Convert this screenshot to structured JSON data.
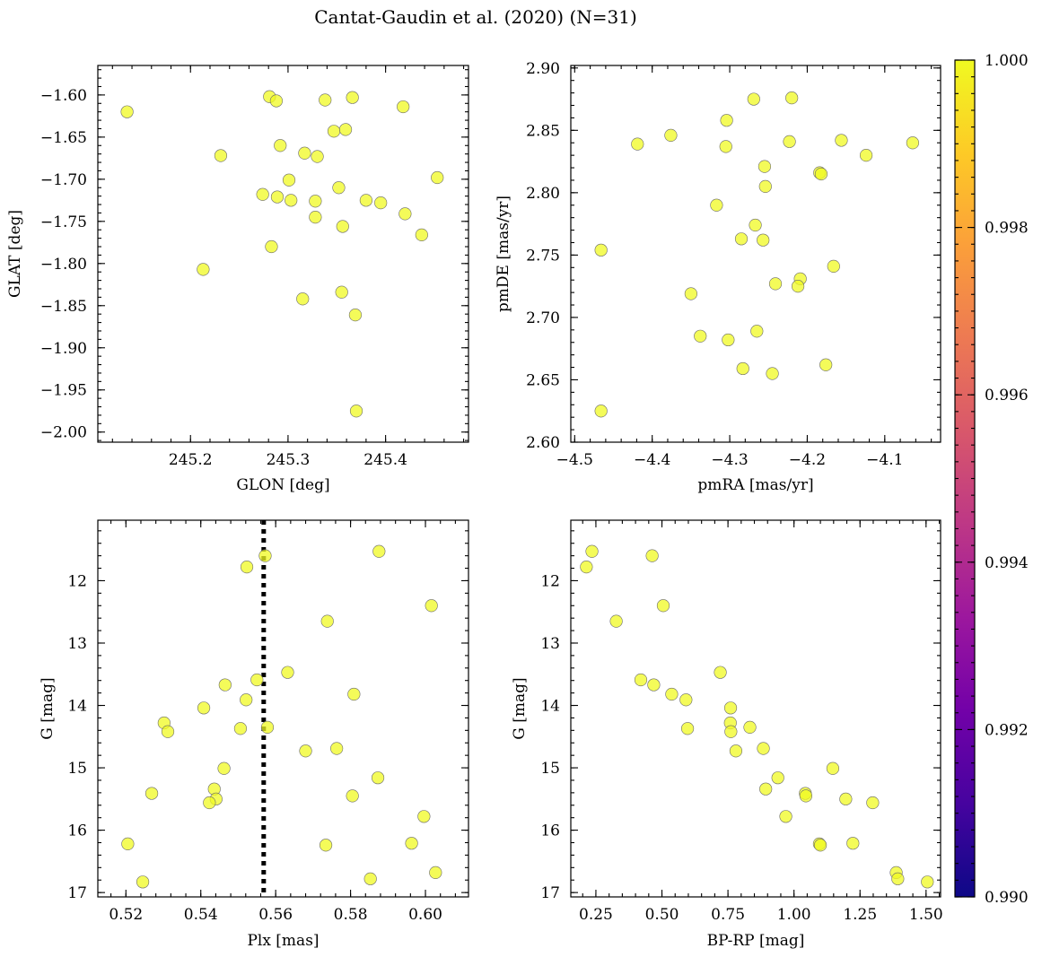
{
  "title": "Cantat-Gaudin et al. (2020) (N=31)",
  "colors": {
    "point": "#f0f921",
    "colormap": [
      "#0d0887",
      "#46039f",
      "#7201a8",
      "#9c179e",
      "#bd3786",
      "#d8576b",
      "#ed7953",
      "#fb9f3a",
      "#fdca26",
      "#f0f921"
    ]
  },
  "colorbar": {
    "range": [
      0.99,
      1.0
    ],
    "ticks": [
      0.99,
      0.992,
      0.994,
      0.996,
      0.998,
      1.0
    ],
    "tick_labels": [
      "0.990",
      "0.992",
      "0.994",
      "0.996",
      "0.998",
      "1.000"
    ]
  },
  "chart_data": [
    {
      "type": "scatter",
      "id": "glon-glat",
      "xlabel": "GLON [deg]",
      "ylabel": "GLAT [deg]",
      "xlim": [
        245.105,
        245.485
      ],
      "ylim": [
        -2.012,
        -1.565
      ],
      "xticks": [
        245.2,
        245.3,
        245.4
      ],
      "xtick_labels": [
        "245.2",
        "245.3",
        "245.4"
      ],
      "yticks": [
        -2.0,
        -1.95,
        -1.9,
        -1.85,
        -1.8,
        -1.75,
        -1.7,
        -1.65,
        -1.6
      ],
      "ytick_labels": [
        "−2.00",
        "−1.95",
        "−1.90",
        "−1.85",
        "−1.80",
        "−1.75",
        "−1.70",
        "−1.65",
        "−1.60"
      ],
      "x_minor_step": 0.02,
      "y_minor_step": 0.01,
      "x": [
        245.135,
        245.281,
        245.288,
        245.338,
        245.366,
        245.418,
        245.347,
        245.359,
        245.231,
        245.292,
        245.317,
        245.33,
        245.301,
        245.453,
        245.274,
        245.289,
        245.303,
        245.328,
        245.352,
        245.38,
        245.395,
        245.328,
        245.42,
        245.356,
        245.437,
        245.283,
        245.213,
        245.315,
        245.355,
        245.369,
        245.37
      ],
      "y": [
        -1.62,
        -1.602,
        -1.607,
        -1.606,
        -1.603,
        -1.614,
        -1.643,
        -1.641,
        -1.672,
        -1.66,
        -1.669,
        -1.673,
        -1.701,
        -1.698,
        -1.718,
        -1.721,
        -1.725,
        -1.726,
        -1.71,
        -1.725,
        -1.728,
        -1.745,
        -1.741,
        -1.756,
        -1.766,
        -1.78,
        -1.807,
        -1.842,
        -1.834,
        -1.861,
        -1.975
      ]
    },
    {
      "type": "scatter",
      "id": "pmra-pmde",
      "xlabel": "pmRA [mas/yr]",
      "ylabel": "pmDE [mas/yr]",
      "xlim": [
        -4.505,
        -4.028
      ],
      "ylim": [
        2.6,
        2.902
      ],
      "xticks": [
        -4.5,
        -4.4,
        -4.3,
        -4.2,
        -4.1
      ],
      "xtick_labels": [
        "−4.5",
        "−4.4",
        "−4.3",
        "−4.2",
        "−4.1"
      ],
      "yticks": [
        2.6,
        2.65,
        2.7,
        2.75,
        2.8,
        2.85,
        2.9
      ],
      "ytick_labels": [
        "2.60",
        "2.65",
        "2.70",
        "2.75",
        "2.80",
        "2.85",
        "2.90"
      ],
      "x_minor_step": 0.02,
      "y_minor_step": 0.01,
      "x": [
        -4.269,
        -4.22,
        -4.304,
        -4.419,
        -4.376,
        -4.305,
        -4.223,
        -4.156,
        -4.124,
        -4.064,
        -4.255,
        -4.184,
        -4.182,
        -4.254,
        -4.317,
        -4.267,
        -4.285,
        -4.257,
        -4.466,
        -4.166,
        -4.209,
        -4.241,
        -4.212,
        -4.35,
        -4.265,
        -4.338,
        -4.302,
        -4.283,
        -4.245,
        -4.176,
        -4.466
      ],
      "y": [
        2.875,
        2.876,
        2.858,
        2.839,
        2.846,
        2.837,
        2.841,
        2.842,
        2.83,
        2.84,
        2.821,
        2.816,
        2.815,
        2.805,
        2.79,
        2.774,
        2.763,
        2.762,
        2.754,
        2.741,
        2.731,
        2.727,
        2.725,
        2.719,
        2.689,
        2.685,
        2.682,
        2.659,
        2.655,
        2.662,
        2.625
      ]
    },
    {
      "type": "scatter",
      "id": "plx-g",
      "xlabel": "Plx [mas]",
      "ylabel": "G [mag]",
      "xlim": [
        0.5125,
        0.6115
      ],
      "ylim": [
        17.07,
        11.03
      ],
      "inverted_y": true,
      "xticks": [
        0.52,
        0.54,
        0.56,
        0.58,
        0.6
      ],
      "xtick_labels": [
        "0.52",
        "0.54",
        "0.56",
        "0.58",
        "0.60"
      ],
      "yticks": [
        12,
        13,
        14,
        15,
        16,
        17
      ],
      "ytick_labels": [
        "12",
        "13",
        "14",
        "15",
        "16",
        "17"
      ],
      "x_minor_step": 0.004,
      "y_minor_step": 0.2,
      "vline": 0.5568,
      "x": [
        0.5876,
        0.5572,
        0.5523,
        0.6016,
        0.5738,
        0.5632,
        0.555,
        0.5465,
        0.5521,
        0.5809,
        0.5408,
        0.5506,
        0.5578,
        0.5302,
        0.5312,
        0.5763,
        0.568,
        0.5462,
        0.5873,
        0.5436,
        0.5269,
        0.5805,
        0.5441,
        0.5423,
        0.5996,
        0.5205,
        0.5963,
        0.5734,
        0.6027,
        0.5853,
        0.5245
      ],
      "y": [
        11.53,
        11.6,
        11.78,
        12.4,
        12.65,
        13.47,
        13.59,
        13.67,
        13.91,
        13.82,
        14.04,
        14.37,
        14.35,
        14.28,
        14.42,
        14.69,
        14.73,
        15.01,
        15.16,
        15.34,
        15.41,
        15.45,
        15.5,
        15.56,
        15.78,
        16.22,
        16.21,
        16.24,
        16.68,
        16.78,
        16.83
      ]
    },
    {
      "type": "scatter",
      "id": "bprp-g",
      "xlabel": "BP-RP [mag]",
      "ylabel": "G [mag]",
      "xlim": [
        0.155,
        1.555
      ],
      "ylim": [
        17.07,
        11.03
      ],
      "inverted_y": true,
      "xticks": [
        0.25,
        0.5,
        0.75,
        1.0,
        1.25,
        1.5
      ],
      "xtick_labels": [
        "0.25",
        "0.50",
        "0.75",
        "1.00",
        "1.25",
        "1.50"
      ],
      "yticks": [
        12,
        13,
        14,
        15,
        16,
        17
      ],
      "ytick_labels": [
        "12",
        "13",
        "14",
        "15",
        "16",
        "17"
      ],
      "x_minor_step": 0.05,
      "y_minor_step": 0.2,
      "x": [
        0.235,
        0.214,
        0.463,
        0.505,
        0.327,
        0.721,
        0.42,
        0.469,
        0.537,
        0.591,
        0.76,
        0.597,
        0.759,
        0.833,
        0.761,
        0.884,
        0.78,
        1.147,
        0.939,
        0.893,
        1.043,
        1.045,
        1.196,
        1.298,
        0.969,
        1.096,
        1.223,
        1.1,
        1.387,
        1.393,
        1.505
      ],
      "y": [
        11.53,
        11.78,
        11.6,
        12.4,
        12.65,
        13.47,
        13.59,
        13.67,
        13.82,
        13.91,
        14.04,
        14.37,
        14.28,
        14.35,
        14.42,
        14.69,
        14.73,
        15.01,
        15.16,
        15.34,
        15.41,
        15.45,
        15.5,
        15.56,
        15.78,
        16.22,
        16.21,
        16.24,
        16.68,
        16.78,
        16.83
      ]
    }
  ]
}
